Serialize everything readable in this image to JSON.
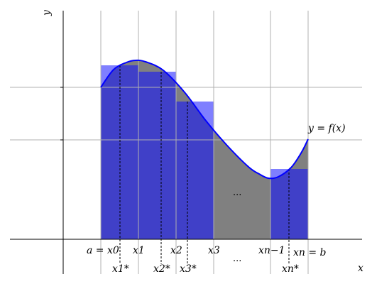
{
  "axes": {
    "x_label": "x",
    "y_label": "y"
  },
  "curve": {
    "label": "y = f(x)",
    "stroke": "#0000ff"
  },
  "colors": {
    "area_under_curve": "#808080",
    "rectangle_fill": "#0000ff",
    "rectangle_overlap": "#4040c8",
    "gridline": "#b0b0b0"
  },
  "partition_labels": {
    "x0": "a = x0",
    "x1": "x1",
    "x2": "x2",
    "x3": "x3",
    "xn_1": "xn−1",
    "xn": "xn = b"
  },
  "sample_labels": {
    "x1_star": "x1*",
    "x2_star": "x2*",
    "x3_star": "x3*",
    "xn_star": "xn*"
  },
  "ellipsis_upper": "...",
  "ellipsis_lower": "..."
}
